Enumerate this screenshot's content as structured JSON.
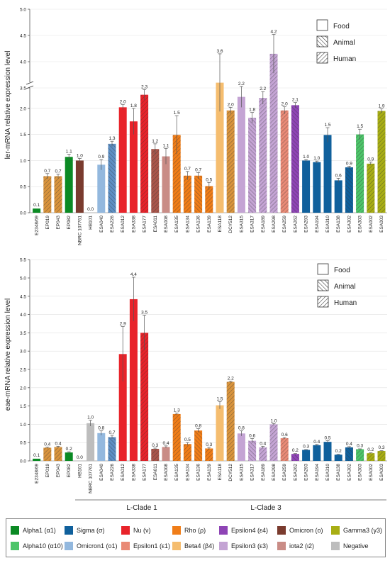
{
  "chart_data": [
    {
      "type": "bar",
      "ylabel": "ler-mRNA relative expression level",
      "ylim": [
        0,
        5.0
      ],
      "y_axis_break": [
        2.5,
        3.5
      ],
      "yticks": [
        "0.0",
        "0.5",
        "1.0",
        "1.5",
        "2.0",
        "3.5",
        "4.0",
        "4.5",
        "5.0"
      ],
      "categories": [
        "E2348/69",
        "EP019",
        "EP043",
        "EP082",
        "NBRC 107761",
        "HB101",
        "ESA040",
        "ESA226",
        "ESA012",
        "ESA338",
        "ESA177",
        "ESA011",
        "ESA008",
        "ESA135",
        "ESA134",
        "ESA136",
        "ESA139",
        "ESA118",
        "DCY512",
        "ESA315",
        "ESA317",
        "ESA189",
        "ESA298",
        "ESA259",
        "ESA262",
        "ESA293",
        "ESA194",
        "ESA310",
        "ESA138",
        "ESA302",
        "ESA303",
        "ESA002",
        "ESA003"
      ],
      "values": [
        0.08,
        0.7,
        0.7,
        1.07,
        1.0,
        0.0,
        0.92,
        1.32,
        2.02,
        1.75,
        2.26,
        1.22,
        1.08,
        1.49,
        0.71,
        0.71,
        0.51,
        3.6,
        1.96,
        2.22,
        1.82,
        2.2,
        4.15,
        1.96,
        2.06,
        1.0,
        0.97,
        1.49,
        0.62,
        0.87,
        1.5,
        0.94,
        1.95
      ],
      "errors": [
        0,
        0.05,
        0.04,
        0.05,
        0.04,
        0,
        0.1,
        0.05,
        0.05,
        0.25,
        0.1,
        0.1,
        0.15,
        0.37,
        0.08,
        0.06,
        0.07,
        0.55,
        0.06,
        0.2,
        0.1,
        0.12,
        0.37,
        0.07,
        0.05,
        0.02,
        0.02,
        0.14,
        0.04,
        0.02,
        0.1,
        0.03,
        0.04
      ],
      "data_labels": [
        "0.1",
        "0.7",
        "0.7",
        "1.1",
        "1.0",
        "0.0",
        "0.9",
        "1.3",
        "2.0",
        "1.8",
        "2.3",
        "1.2",
        "1.1",
        "1.5",
        "0.7",
        "0.7",
        "0.5",
        "3.6",
        "2.0",
        "2.2",
        "1.8",
        "2.2",
        "4.2",
        "2.0",
        "2.1",
        "1.0",
        "1.0",
        "1.5",
        "0.6",
        "0.9",
        "1.5",
        "0.9",
        "1.9"
      ],
      "source_legend": [
        "Food",
        "Animal",
        "Human"
      ]
    },
    {
      "type": "bar",
      "ylabel": "eae-mRNA relative expression level",
      "ylim": [
        0,
        5.5
      ],
      "yticks": [
        "0.0",
        "0.5",
        "1.0",
        "1.5",
        "2.0",
        "2.5",
        "3.0",
        "3.5",
        "4.0",
        "4.5",
        "5.0",
        "5.5"
      ],
      "categories": [
        "E2348/69",
        "EP019",
        "EP043",
        "EP082",
        "HB101",
        "NBRC 107761",
        "ESA040",
        "ESA226",
        "ESA012",
        "ESA338",
        "ESA177",
        "ESA011",
        "ESA008",
        "ESA135",
        "ESA134",
        "ESA136",
        "ESA139",
        "ESA118",
        "DCY512",
        "ESA315",
        "ESA317",
        "ESA189",
        "ESA298",
        "ESA259",
        "ESA262",
        "ESA293",
        "ESA194",
        "ESA310",
        "ESA138",
        "ESA302",
        "ESA303",
        "ESA002",
        "ESA003"
      ],
      "values": [
        0.06,
        0.36,
        0.38,
        0.23,
        0.0,
        1.03,
        0.76,
        0.65,
        2.92,
        4.42,
        3.5,
        0.33,
        0.38,
        1.28,
        0.46,
        0.83,
        0.34,
        1.52,
        2.16,
        0.75,
        0.55,
        0.37,
        1.0,
        0.62,
        0.19,
        0.3,
        0.43,
        0.52,
        0.17,
        0.37,
        0.32,
        0.21,
        0.27
      ],
      "errors": [
        0,
        0.02,
        0.02,
        0.02,
        0,
        0.08,
        0.06,
        0.05,
        0.75,
        0.6,
        0.48,
        0.02,
        0.03,
        0.03,
        0.04,
        0.05,
        0.03,
        0.1,
        0.02,
        0.07,
        0.06,
        0.03,
        0.02,
        0.02,
        0.01,
        0.01,
        0.02,
        0.03,
        0.01,
        0.02,
        0.01,
        0.01,
        0.01
      ],
      "data_labels": [
        "0.1",
        "0.4",
        "0.4",
        "0.2",
        "0.0",
        "1.0",
        "0.8",
        "0.7",
        "2.9",
        "4.4",
        "3.5",
        "0.3",
        "0.4",
        "1.3",
        "0.5",
        "0.8",
        "0.3",
        "1.5",
        "2.2",
        "0.8",
        "0.6",
        "0.4",
        "1.0",
        "0.6",
        "0.2",
        "0.3",
        "0.4",
        "0.5",
        "0.2",
        "0.4",
        "0.3",
        "0.2",
        "0.3"
      ],
      "source_legend": [
        "Food",
        "Animal",
        "Human"
      ],
      "group_labels": [
        "L-Clade 1",
        "L-Clade 3"
      ]
    }
  ],
  "bar_style": {
    "colors": [
      "#0b8a24",
      "#d9943d",
      "#d9943d",
      "#0b8a24",
      "#7a3b2e",
      "#bdbdbd",
      "#93b8de",
      "#5d8fc4",
      "#e8232a",
      "#e8232a",
      "#e8232a",
      "#a9554a",
      "#c98c86",
      "#f07d18",
      "#f07d18",
      "#f07d18",
      "#f07d18",
      "#f5bd6f",
      "#d9943d",
      "#c4a4d4",
      "#c4a4d4",
      "#c4a4d4",
      "#c4a4d4",
      "#e98a76",
      "#8e44b5",
      "#10609c",
      "#10609c",
      "#10609c",
      "#10609c",
      "#10609c",
      "#4dc56a",
      "#a8ae14",
      "#a8ae14"
    ],
    "patterns_ler": [
      "solid",
      "human",
      "human",
      "solid",
      "solid",
      "solid",
      "solid",
      "animal",
      "solid",
      "solid",
      "human",
      "human",
      "solid",
      "human",
      "human",
      "animal",
      "human",
      "solid",
      "human",
      "solid",
      "animal",
      "human",
      "human",
      "human",
      "animal",
      "solid",
      "solid",
      "solid",
      "solid",
      "animal",
      "human",
      "human",
      "human"
    ],
    "patterns_eae": [
      "solid",
      "human",
      "human",
      "solid",
      "solid",
      "solid",
      "solid",
      "animal",
      "solid",
      "solid",
      "human",
      "human",
      "solid",
      "human",
      "human",
      "animal",
      "human",
      "solid",
      "human",
      "solid",
      "animal",
      "human",
      "human",
      "human",
      "animal",
      "solid",
      "solid",
      "solid",
      "solid",
      "animal",
      "human",
      "human",
      "human"
    ]
  },
  "legend": {
    "items": [
      {
        "label": "Alpha1 (α1)",
        "color": "#0b8a24"
      },
      {
        "label": "Sigma (σ)",
        "color": "#10609c"
      },
      {
        "label": "Nu (ν)",
        "color": "#e8232a"
      },
      {
        "label": "Rho (ρ)",
        "color": "#f07d18"
      },
      {
        "label": "Epsilon4 (ε4)",
        "color": "#8e44b5"
      },
      {
        "label": "Omicron (ο)",
        "color": "#7a3b2e"
      },
      {
        "label": "Gamma3 (γ3)",
        "color": "#a8ae14"
      },
      {
        "label": "Alpha10 (α10)",
        "color": "#4dc56a"
      },
      {
        "label": "Omicron1 (ο1)",
        "color": "#93b8de"
      },
      {
        "label": "Epsilon1 (ε1)",
        "color": "#e98a76"
      },
      {
        "label": "Beta4 (β4)",
        "color": "#f5bd6f"
      },
      {
        "label": "Epsilon3 (ε3)",
        "color": "#c4a4d4"
      },
      {
        "label": "iota2 (ι2)",
        "color": "#c98c86"
      },
      {
        "label": "Negative",
        "color": "#bdbdbd"
      }
    ]
  }
}
